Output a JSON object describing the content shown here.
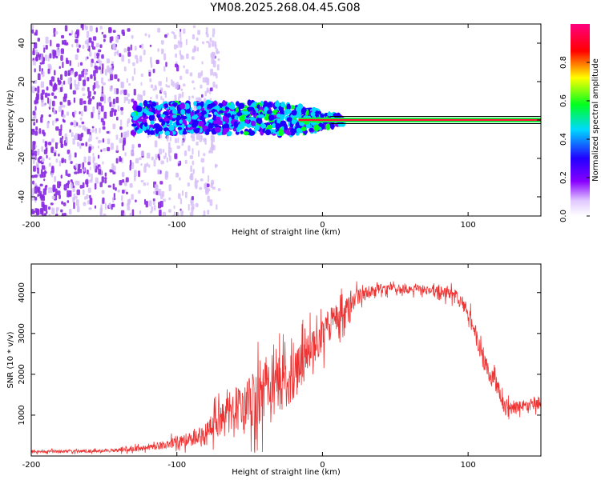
{
  "title": "YM08.2025.268.04.45.G08",
  "chart_data": [
    {
      "type": "heatmap",
      "title": "YM08.2025.268.04.45.G08",
      "xlabel": "Height of straight line (km)",
      "ylabel": "Frequency (Hz)",
      "xlim": [
        -200,
        150
      ],
      "ylim": [
        -50,
        50
      ],
      "x_ticks": [
        -200,
        -100,
        0,
        100
      ],
      "x_tick_labels": [
        "-200",
        "-100",
        "0",
        "100"
      ],
      "y_ticks": [
        -40,
        -20,
        0,
        20,
        40
      ],
      "y_tick_labels": [
        "-40",
        "-20",
        "0",
        "20",
        "40"
      ],
      "colorbar": {
        "label": "Normalized spectral amplitude",
        "range": [
          0,
          1
        ],
        "ticks": [
          0.0,
          0.2,
          0.4,
          0.6,
          0.8
        ],
        "tick_labels": [
          "0.0",
          "0.2",
          "0.4",
          "0.6",
          "0.8"
        ],
        "colors": [
          "#ffffff",
          "#e0c8ff",
          "#8800ff",
          "#2200ff",
          "#00d8ff",
          "#00ff20",
          "#ffff00",
          "#ff0000",
          "#ff0080"
        ]
      },
      "regions": [
        {
          "name": "scattered noise",
          "x_range": [
            -200,
            -78
          ],
          "freq_range": [
            -50,
            50
          ],
          "amplitude": 0.1
        },
        {
          "name": "dense signal cluster",
          "x_range": [
            -130,
            15
          ],
          "freq_range": [
            -8,
            8
          ],
          "amplitude": 0.35
        },
        {
          "name": "steady carrier line",
          "x_range": [
            0,
            150
          ],
          "freq_range": [
            -1,
            1
          ],
          "amplitude": 0.95
        }
      ]
    },
    {
      "type": "line",
      "xlabel": "Height of straight line (km)",
      "ylabel": "SNR (10 * v/v)",
      "xlim": [
        -200,
        150
      ],
      "ylim": [
        0,
        4700
      ],
      "x_ticks": [
        -200,
        -100,
        0,
        100
      ],
      "x_tick_labels": [
        "-200",
        "-100",
        "0",
        "100"
      ],
      "y_ticks": [
        1000,
        2000,
        3000,
        4000
      ],
      "y_tick_labels": [
        "1000",
        "2000",
        "3000",
        "4000"
      ],
      "color": "#ee3333",
      "series": [
        {
          "name": "SNR",
          "x": [
            -200,
            -180,
            -160,
            -140,
            -120,
            -110,
            -100,
            -90,
            -80,
            -70,
            -60,
            -50,
            -40,
            -30,
            -20,
            -10,
            0,
            10,
            20,
            30,
            40,
            50,
            60,
            70,
            80,
            90,
            95,
            100,
            105,
            110,
            115,
            120,
            125,
            130,
            140,
            150
          ],
          "y": [
            100,
            110,
            120,
            140,
            200,
            260,
            340,
            420,
            560,
            900,
            1150,
            1300,
            1550,
            1750,
            1900,
            2500,
            3000,
            3400,
            3800,
            4000,
            4080,
            4100,
            4080,
            4070,
            4020,
            3950,
            3800,
            3500,
            3000,
            2400,
            2000,
            1700,
            1200,
            1150,
            1250,
            1300
          ],
          "spread": [
            50,
            50,
            60,
            70,
            100,
            140,
            200,
            250,
            320,
            650,
            800,
            950,
            1050,
            1000,
            900,
            800,
            650,
            550,
            400,
            250,
            180,
            160,
            160,
            160,
            180,
            220,
            250,
            300,
            320,
            320,
            300,
            300,
            250,
            200,
            200,
            200
          ]
        }
      ]
    }
  ]
}
